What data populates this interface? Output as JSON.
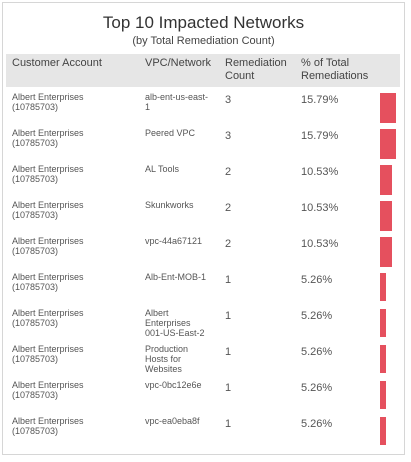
{
  "widget": {
    "title": "Top 10 Impacted Networks",
    "subtitle": "(by Total Remediation Count)"
  },
  "table": {
    "headers": {
      "customer": "Customer Account",
      "vpc": "VPC/Network",
      "count_line1": "Remediation",
      "count_line2": "Count",
      "pct_line1": "% of Total",
      "pct_line2": "Remediations"
    },
    "bar_color": "#e5505e",
    "rows": [
      {
        "customer_name": "Albert Enterprises",
        "customer_id": "(10785703)",
        "vpc_lines": [
          "alb-ent-us-east-",
          "1"
        ],
        "count": "3",
        "percent": "15.79%",
        "fraction": 0.1579
      },
      {
        "customer_name": "Albert Enterprises",
        "customer_id": "(10785703)",
        "vpc_lines": [
          "Peered VPC"
        ],
        "count": "3",
        "percent": "15.79%",
        "fraction": 0.1579
      },
      {
        "customer_name": "Albert Enterprises",
        "customer_id": "(10785703)",
        "vpc_lines": [
          "AL Tools"
        ],
        "count": "2",
        "percent": "10.53%",
        "fraction": 0.1053
      },
      {
        "customer_name": "Albert Enterprises",
        "customer_id": "(10785703)",
        "vpc_lines": [
          "Skunkworks"
        ],
        "count": "2",
        "percent": "10.53%",
        "fraction": 0.1053
      },
      {
        "customer_name": "Albert Enterprises",
        "customer_id": "(10785703)",
        "vpc_lines": [
          "vpc-44a67121"
        ],
        "count": "2",
        "percent": "10.53%",
        "fraction": 0.1053
      },
      {
        "customer_name": "Albert Enterprises",
        "customer_id": "(10785703)",
        "vpc_lines": [
          "Alb-Ent-MOB-1"
        ],
        "count": "1",
        "percent": "5.26%",
        "fraction": 0.0526
      },
      {
        "customer_name": "Albert Enterprises",
        "customer_id": "(10785703)",
        "vpc_lines": [
          "Albert",
          "Enterprises",
          "001-US-East-2"
        ],
        "count": "1",
        "percent": "5.26%",
        "fraction": 0.0526
      },
      {
        "customer_name": "Albert Enterprises",
        "customer_id": "(10785703)",
        "vpc_lines": [
          "Production",
          "Hosts for",
          "Websites"
        ],
        "count": "1",
        "percent": "5.26%",
        "fraction": 0.0526
      },
      {
        "customer_name": "Albert Enterprises",
        "customer_id": "(10785703)",
        "vpc_lines": [
          "vpc-0bc12e6e"
        ],
        "count": "1",
        "percent": "5.26%",
        "fraction": 0.0526
      },
      {
        "customer_name": "Albert Enterprises",
        "customer_id": "(10785703)",
        "vpc_lines": [
          "vpc-ea0eba8f"
        ],
        "count": "1",
        "percent": "5.26%",
        "fraction": 0.0526
      }
    ]
  }
}
